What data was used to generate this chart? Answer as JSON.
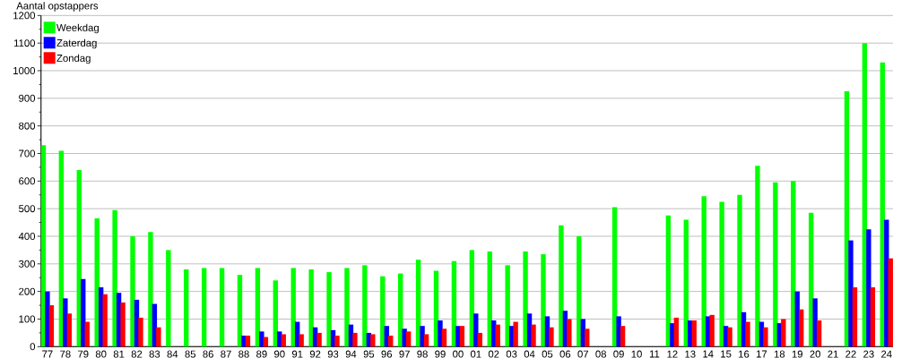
{
  "chart_data": {
    "type": "bar",
    "ylabel": "Aantal opstappers",
    "categories": [
      "77",
      "78",
      "79",
      "80",
      "81",
      "82",
      "83",
      "84",
      "85",
      "86",
      "87",
      "88",
      "89",
      "90",
      "91",
      "92",
      "93",
      "94",
      "95",
      "96",
      "97",
      "98",
      "99",
      "00",
      "01",
      "02",
      "03",
      "04",
      "05",
      "06",
      "07",
      "08",
      "09",
      "10",
      "11",
      "12",
      "13",
      "14",
      "15",
      "16",
      "17",
      "18",
      "19",
      "20",
      "21",
      "22",
      "23",
      "24"
    ],
    "series": [
      {
        "name": "Weekdag",
        "color": "#00ff00",
        "values": [
          730,
          710,
          640,
          465,
          495,
          400,
          415,
          350,
          280,
          285,
          285,
          260,
          285,
          240,
          285,
          280,
          270,
          285,
          295,
          255,
          265,
          315,
          275,
          310,
          350,
          345,
          295,
          345,
          335,
          440,
          400,
          null,
          505,
          null,
          null,
          475,
          460,
          545,
          525,
          550,
          655,
          595,
          600,
          485,
          null,
          925,
          1100,
          1030
        ]
      },
      {
        "name": "Zaterdag",
        "color": "#0000ff",
        "values": [
          200,
          175,
          245,
          215,
          195,
          170,
          155,
          null,
          null,
          null,
          null,
          40,
          55,
          55,
          90,
          70,
          60,
          80,
          50,
          75,
          65,
          75,
          95,
          75,
          120,
          95,
          75,
          120,
          110,
          130,
          100,
          null,
          110,
          null,
          null,
          85,
          95,
          110,
          75,
          125,
          90,
          85,
          200,
          175,
          null,
          385,
          425,
          460
        ]
      },
      {
        "name": "Zondag",
        "color": "#ff0000",
        "values": [
          150,
          120,
          90,
          190,
          160,
          105,
          70,
          null,
          null,
          null,
          null,
          40,
          35,
          45,
          45,
          50,
          40,
          50,
          45,
          40,
          55,
          45,
          65,
          75,
          50,
          80,
          90,
          80,
          70,
          100,
          65,
          null,
          75,
          null,
          null,
          105,
          95,
          115,
          70,
          90,
          70,
          100,
          135,
          95,
          null,
          215,
          215,
          320
        ]
      }
    ],
    "ylim": [
      0,
      1200
    ],
    "yticks": [
      0,
      {
        "value": 50,
        "label": null
      },
      100,
      {
        "value": 150,
        "label": null
      },
      200,
      {
        "value": 250,
        "label": null
      },
      300,
      {
        "value": 350,
        "label": null
      },
      400,
      {
        "value": 450,
        "label": null
      },
      500,
      {
        "value": 550,
        "label": null
      },
      600,
      {
        "value": 650,
        "label": null
      },
      700,
      {
        "value": 750,
        "label": null
      },
      800,
      {
        "value": 850,
        "label": null
      },
      900,
      {
        "value": 950,
        "label": null
      },
      1000,
      {
        "value": 1050,
        "label": null
      },
      1100,
      {
        "value": 1150,
        "label": null
      },
      1200
    ],
    "grid": "y",
    "legend": "top left"
  }
}
